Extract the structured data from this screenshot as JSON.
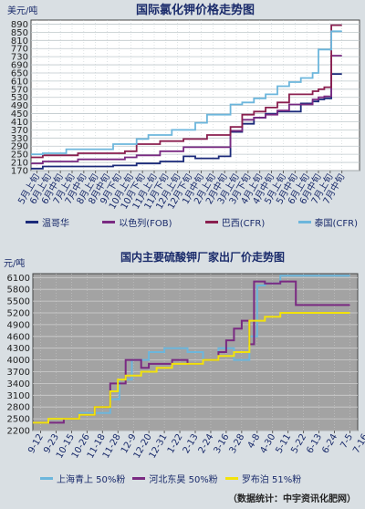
{
  "chart_data": [
    {
      "type": "line",
      "title": "国际氯化钾价格走势图",
      "ylabel": "美元/吨",
      "ylim": [
        170,
        910
      ],
      "yticks": [
        170,
        210,
        250,
        290,
        330,
        370,
        410,
        450,
        490,
        530,
        570,
        610,
        650,
        690,
        730,
        770,
        810,
        850,
        890
      ],
      "categories": [
        "5月上旬",
        "6月上旬",
        "6月中旬",
        "7月上旬",
        "7月中旬",
        "8月上旬",
        "8月中旬",
        "9月下旬",
        "10月上旬",
        "10月下旬",
        "11月上旬",
        "11月下旬",
        "12月上旬",
        "12月下旬",
        "1月中旬",
        "2月上旬",
        "2月中旬",
        "3月上旬",
        "3月下旬",
        "4月上旬",
        "4月中旬",
        "5月上旬",
        "5月中旬",
        "6月上旬",
        "6月中旬",
        "7月上旬",
        "7月中旬"
      ],
      "xlim": [
        0,
        28
      ],
      "series": [
        {
          "name": "温哥华",
          "color": "#1b2a7a",
          "x": [
            0,
            1,
            1,
            7,
            7,
            9,
            9,
            11,
            11,
            13,
            13,
            14,
            14,
            16,
            16,
            17,
            17,
            18,
            18,
            19,
            19,
            20,
            20,
            21,
            21,
            23,
            23,
            24,
            24,
            24.5,
            24.5,
            25,
            25,
            25.6,
            25.6,
            26.5,
            26.5
          ],
          "y": [
            180,
            180,
            190,
            190,
            195,
            195,
            205,
            205,
            215,
            215,
            240,
            240,
            230,
            230,
            240,
            240,
            360,
            360,
            400,
            400,
            430,
            430,
            450,
            450,
            460,
            460,
            500,
            500,
            510,
            510,
            520,
            520,
            525,
            525,
            645,
            645,
            645
          ]
        },
        {
          "name": "以色列(FOB)",
          "color": "#7a2a82",
          "x": [
            0,
            1,
            1,
            4,
            4,
            8,
            8,
            9,
            9,
            11,
            11,
            13,
            13,
            15,
            15,
            17,
            17,
            18,
            18,
            19,
            19,
            20,
            20,
            21,
            21,
            22,
            22,
            24,
            24,
            24.5,
            24.5,
            25,
            25,
            25.6,
            25.6,
            26.5,
            26.5
          ],
          "y": [
            205,
            205,
            215,
            215,
            225,
            225,
            235,
            235,
            245,
            245,
            265,
            265,
            285,
            285,
            285,
            285,
            365,
            365,
            420,
            420,
            430,
            430,
            445,
            445,
            465,
            465,
            495,
            495,
            520,
            520,
            530,
            530,
            535,
            535,
            735,
            735,
            735
          ]
        },
        {
          "name": "巴西(CFR)",
          "color": "#8a1f4f",
          "x": [
            0,
            1,
            1,
            4,
            4,
            8,
            8,
            9,
            9,
            11,
            11,
            13,
            13,
            15,
            15,
            17,
            17,
            18,
            18,
            19,
            19,
            20,
            20,
            21,
            21,
            22,
            22,
            24,
            24,
            24.5,
            24.5,
            25,
            25,
            25.6,
            25.6,
            26.5,
            26.5
          ],
          "y": [
            235,
            235,
            245,
            245,
            255,
            255,
            265,
            265,
            300,
            300,
            315,
            315,
            325,
            325,
            345,
            345,
            385,
            385,
            445,
            445,
            460,
            460,
            480,
            480,
            505,
            505,
            545,
            545,
            560,
            560,
            570,
            570,
            580,
            580,
            885,
            885,
            885
          ]
        },
        {
          "name": "泰国(CFR)",
          "color": "#6cb6dc",
          "x": [
            0,
            1,
            1,
            3,
            3,
            7,
            7,
            9,
            9,
            10,
            10,
            12,
            12,
            14,
            14,
            15,
            15,
            17,
            17,
            18,
            18,
            19,
            19,
            20,
            20,
            21,
            21,
            22,
            22,
            23,
            23,
            24,
            24,
            24.5,
            24.5,
            25.6,
            25.6,
            26.5,
            26.5
          ],
          "y": [
            250,
            250,
            255,
            255,
            275,
            275,
            300,
            300,
            325,
            325,
            345,
            345,
            370,
            370,
            405,
            405,
            445,
            445,
            495,
            495,
            505,
            505,
            525,
            525,
            545,
            545,
            585,
            585,
            605,
            605,
            625,
            625,
            650,
            650,
            765,
            765,
            855,
            855,
            855
          ]
        }
      ]
    },
    {
      "type": "line",
      "title": "国内主要硫酸钾厂家出厂价走势图",
      "ylabel": "元/吨",
      "ylim": [
        2200,
        6200
      ],
      "yticks": [
        2200,
        2500,
        2800,
        3100,
        3400,
        3700,
        4000,
        4300,
        4600,
        4900,
        5200,
        5500,
        5800,
        6100
      ],
      "categories": [
        "9-12",
        "9-23",
        "10-15",
        "10-26",
        "11-18",
        "11-28",
        "12-9",
        "12-20",
        "12-31",
        "1-22",
        "2-13",
        "2-24",
        "3-16",
        "3-28",
        "4-8",
        "4-30",
        "5-11",
        "5-22",
        "6-13",
        "6-24",
        "7-5",
        "7-16"
      ],
      "xlim": [
        0,
        21
      ],
      "series": [
        {
          "name": "上海青上 50%粉",
          "color": "#6cb6dc",
          "x": [
            0,
            1,
            1,
            3,
            3,
            5,
            5,
            5.6,
            5.6,
            6.4,
            6.4,
            7.5,
            7.5,
            8.5,
            8.5,
            10,
            10,
            11,
            11,
            12,
            12,
            13,
            13,
            14,
            14,
            14.5,
            14.5,
            15,
            15,
            16,
            16,
            20.5
          ],
          "y": [
            2400,
            2400,
            2500,
            2500,
            2650,
            2650,
            3000,
            3000,
            3500,
            3500,
            4000,
            4000,
            4200,
            4200,
            4300,
            4300,
            4200,
            4200,
            4000,
            4000,
            4300,
            4300,
            4000,
            4000,
            4600,
            4600,
            5900,
            5900,
            5950,
            5950,
            6150,
            6150
          ]
        },
        {
          "name": "河北东昊 50%粉",
          "color": "#7a2a82",
          "x": [
            0,
            2,
            2,
            3,
            3,
            4,
            4,
            5,
            5,
            6,
            6,
            7,
            7,
            7.5,
            7.5,
            9,
            9,
            10,
            10,
            11,
            11,
            12,
            12,
            12.5,
            12.5,
            13,
            13,
            13.5,
            13.5,
            14,
            14,
            14.3,
            14.3,
            15,
            15,
            16,
            16,
            17,
            17,
            20.5
          ],
          "y": [
            2400,
            2400,
            2500,
            2500,
            2600,
            2600,
            2800,
            2800,
            3400,
            3400,
            4000,
            4000,
            3800,
            3800,
            3900,
            3900,
            4000,
            4000,
            3900,
            3900,
            4000,
            4000,
            4200,
            4200,
            4500,
            4500,
            4800,
            4800,
            5000,
            5000,
            4400,
            4400,
            6000,
            6000,
            5950,
            5950,
            6000,
            6000,
            5400,
            5400
          ]
        },
        {
          "name": "罗布泊 51%粉",
          "color": "#f2e20c",
          "x": [
            0,
            1,
            1,
            2,
            2,
            3,
            3,
            4,
            4,
            5,
            5,
            5.5,
            5.5,
            6,
            6,
            7,
            7,
            8,
            8,
            9,
            9,
            10,
            10,
            11,
            11,
            12,
            12,
            13,
            13,
            14,
            14,
            15,
            15,
            16,
            16,
            20.5
          ],
          "y": [
            2400,
            2400,
            2500,
            2500,
            2500,
            2500,
            2600,
            2600,
            2800,
            2800,
            3200,
            3200,
            3500,
            3500,
            3600,
            3600,
            3700,
            3700,
            3800,
            3800,
            3900,
            3900,
            3900,
            3900,
            4000,
            4000,
            4100,
            4100,
            4200,
            4200,
            5000,
            5000,
            5100,
            5100,
            5200,
            5200
          ]
        }
      ]
    }
  ],
  "source_note": "（数据统计：中宇资讯化肥网）"
}
